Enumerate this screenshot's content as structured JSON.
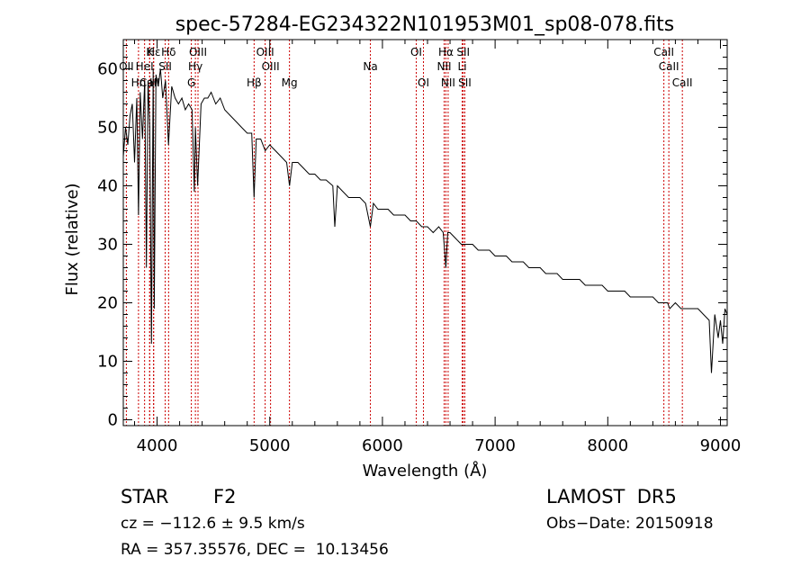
{
  "chart_data": {
    "type": "line",
    "title": "spec-57284-EG234322N101953M01_sp08-078.fits",
    "xlabel": "Wavelength (Å)",
    "ylabel": "Flux (relative)",
    "xlim": [
      3700,
      9060
    ],
    "ylim": [
      -1,
      65
    ],
    "x_ticks": [
      4000,
      5000,
      6000,
      7000,
      8000,
      9000
    ],
    "y_ticks": [
      0,
      10,
      20,
      30,
      40,
      50,
      60
    ],
    "grid": false,
    "line_color": "#000000",
    "marker_color": "#cc0000",
    "series": [
      {
        "x": [
          3700,
          3720,
          3740,
          3760,
          3780,
          3800,
          3820,
          3835,
          3850,
          3870,
          3890,
          3905,
          3920,
          3935,
          3950,
          3965,
          3975,
          3990,
          4010,
          4030,
          4050,
          4075,
          4101,
          4130,
          4160,
          4190,
          4220,
          4250,
          4280,
          4310,
          4330,
          4340,
          4360,
          4390,
          4420,
          4450,
          4480,
          4520,
          4560,
          4600,
          4650,
          4700,
          4750,
          4800,
          4840,
          4861,
          4880,
          4920,
          4960,
          5000,
          5050,
          5100,
          5150,
          5175,
          5200,
          5250,
          5300,
          5350,
          5400,
          5450,
          5500,
          5560,
          5577,
          5600,
          5650,
          5700,
          5750,
          5800,
          5850,
          5893,
          5920,
          5960,
          6000,
          6050,
          6100,
          6150,
          6200,
          6250,
          6300,
          6350,
          6400,
          6450,
          6500,
          6540,
          6563,
          6580,
          6600,
          6650,
          6700,
          6750,
          6800,
          6850,
          6900,
          6950,
          7000,
          7050,
          7100,
          7150,
          7200,
          7250,
          7300,
          7350,
          7400,
          7450,
          7500,
          7550,
          7600,
          7650,
          7700,
          7750,
          7800,
          7850,
          7900,
          7950,
          8000,
          8050,
          8100,
          8150,
          8200,
          8250,
          8300,
          8350,
          8400,
          8450,
          8500,
          8530,
          8550,
          8600,
          8650,
          8700,
          8750,
          8800,
          8850,
          8900,
          8920,
          8950,
          8980,
          9000,
          9020,
          9040,
          9060
        ],
        "y": [
          45,
          50,
          47,
          52,
          54,
          44,
          55,
          35,
          56,
          48,
          58,
          26,
          58,
          50,
          13,
          60,
          19,
          59,
          57,
          60,
          55,
          58,
          47,
          57,
          55,
          54,
          55,
          53,
          54,
          53,
          39,
          50,
          40,
          54,
          55,
          55,
          56,
          54,
          55,
          53,
          52,
          51,
          50,
          49,
          49,
          38,
          48,
          48,
          46,
          47,
          46,
          45,
          44,
          40,
          44,
          44,
          43,
          42,
          42,
          41,
          41,
          40,
          33,
          40,
          39,
          38,
          38,
          38,
          37,
          33,
          37,
          36,
          36,
          36,
          35,
          35,
          35,
          34,
          34,
          33,
          33,
          32,
          33,
          32,
          26,
          32,
          32,
          31,
          30,
          30,
          30,
          29,
          29,
          29,
          28,
          28,
          28,
          27,
          27,
          27,
          26,
          26,
          26,
          25,
          25,
          25,
          24,
          24,
          24,
          24,
          23,
          23,
          23,
          23,
          22,
          22,
          22,
          22,
          21,
          21,
          21,
          21,
          21,
          20,
          20,
          20,
          19,
          20,
          19,
          19,
          19,
          19,
          18,
          17,
          8,
          18,
          14,
          17,
          13,
          19,
          18
        ]
      }
    ],
    "lines": [
      {
        "label": "Hε",
        "wl": 3970,
        "row": 1
      },
      {
        "label": "K",
        "wl": 3934,
        "row": 1
      },
      {
        "label": "Hδ",
        "wl": 4102,
        "row": 1
      },
      {
        "label": "OIII",
        "wl": 4363,
        "row": 1
      },
      {
        "label": "OIII",
        "wl": 4959,
        "row": 1
      },
      {
        "label": "OI",
        "wl": 6300,
        "row": 1
      },
      {
        "label": "Hα",
        "wl": 6563,
        "row": 1
      },
      {
        "label": "SII",
        "wl": 6717,
        "row": 1
      },
      {
        "label": "CaII",
        "wl": 8498,
        "row": 1
      },
      {
        "label": "OII",
        "wl": 3727,
        "row": 2
      },
      {
        "label": "HeI",
        "wl": 3889,
        "row": 2
      },
      {
        "label": "SII",
        "wl": 4072,
        "row": 2
      },
      {
        "label": "Hγ",
        "wl": 4340,
        "row": 2
      },
      {
        "label": "OIII",
        "wl": 5007,
        "row": 2
      },
      {
        "label": "Na",
        "wl": 5893,
        "row": 2
      },
      {
        "label": "NII",
        "wl": 6548,
        "row": 2
      },
      {
        "label": "Li",
        "wl": 6708,
        "row": 2
      },
      {
        "label": "CaII",
        "wl": 8542,
        "row": 2
      },
      {
        "label": "CaII",
        "wl": 3934,
        "row": 3
      },
      {
        "label": "Hη",
        "wl": 3835,
        "row": 3
      },
      {
        "label": "H",
        "wl": 3968,
        "row": 3
      },
      {
        "label": "G",
        "wl": 4304,
        "row": 3
      },
      {
        "label": "Hβ",
        "wl": 4861,
        "row": 3
      },
      {
        "label": "Mg",
        "wl": 5175,
        "row": 3
      },
      {
        "label": "OI",
        "wl": 6364,
        "row": 3
      },
      {
        "label": "NII",
        "wl": 6583,
        "row": 3
      },
      {
        "label": "SII",
        "wl": 6731,
        "row": 3
      },
      {
        "label": "CaII",
        "wl": 8662,
        "row": 3
      }
    ]
  },
  "info": {
    "class": "STAR",
    "subclass": "F2",
    "survey": "LAMOST  DR5",
    "cz": "cz = −112.6 ± 9.5 km/s",
    "obs_date": "Obs−Date: 20150918",
    "radec": "RA = 357.35576, DEC =  10.13456"
  }
}
